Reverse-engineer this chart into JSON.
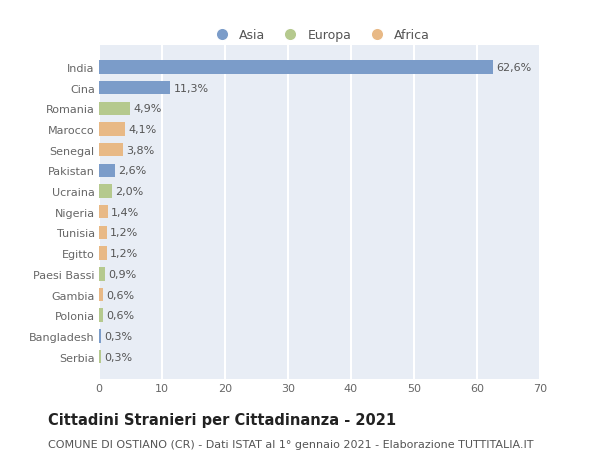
{
  "categories": [
    "India",
    "Cina",
    "Romania",
    "Marocco",
    "Senegal",
    "Pakistan",
    "Ucraina",
    "Nigeria",
    "Tunisia",
    "Egitto",
    "Paesi Bassi",
    "Gambia",
    "Polonia",
    "Bangladesh",
    "Serbia"
  ],
  "values": [
    62.6,
    11.3,
    4.9,
    4.1,
    3.8,
    2.6,
    2.0,
    1.4,
    1.2,
    1.2,
    0.9,
    0.6,
    0.6,
    0.3,
    0.3
  ],
  "labels": [
    "62,6%",
    "11,3%",
    "4,9%",
    "4,1%",
    "3,8%",
    "2,6%",
    "2,0%",
    "1,4%",
    "1,2%",
    "1,2%",
    "0,9%",
    "0,6%",
    "0,6%",
    "0,3%",
    "0,3%"
  ],
  "continents": [
    "Asia",
    "Asia",
    "Europa",
    "Africa",
    "Africa",
    "Asia",
    "Europa",
    "Africa",
    "Africa",
    "Africa",
    "Europa",
    "Africa",
    "Europa",
    "Asia",
    "Europa"
  ],
  "colors": {
    "Asia": "#7b9cc9",
    "Europa": "#b5c98e",
    "Africa": "#e8b986"
  },
  "title": "Cittadini Stranieri per Cittadinanza - 2021",
  "subtitle": "COMUNE DI OSTIANO (CR) - Dati ISTAT al 1° gennaio 2021 - Elaborazione TUTTITALIA.IT",
  "xlim": [
    0,
    70
  ],
  "xticks": [
    0,
    10,
    20,
    30,
    40,
    50,
    60,
    70
  ],
  "background_color": "#ffffff",
  "plot_bg_color": "#e8edf5",
  "grid_color": "#ffffff",
  "bar_height": 0.65,
  "title_fontsize": 10.5,
  "subtitle_fontsize": 8.0,
  "tick_fontsize": 8.0,
  "label_fontsize": 8.0,
  "legend_fontsize": 9.0
}
